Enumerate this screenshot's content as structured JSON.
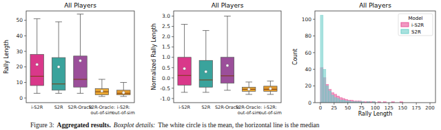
{
  "chart_data": [
    {
      "type": "box",
      "title": "All Players",
      "y_label": "Rally Length",
      "categories": [
        "i-S2R",
        "S2R",
        "S2R-Oracle",
        "S2R-Oracle: out-of-sim",
        "i-S2R: out-of-sim"
      ],
      "colors": [
        "#d9388a",
        "#3aa39c",
        "#9b4f9a",
        "#e8a631",
        "#e39a2c"
      ],
      "boxes": [
        {
          "low": 3,
          "q1": 8,
          "median": 14,
          "q3": 28,
          "high": 51,
          "mean": 21.5
        },
        {
          "low": 3,
          "q1": 5,
          "median": 9,
          "q3": 26,
          "high": 49,
          "mean": 20
        },
        {
          "low": 3,
          "q1": 7,
          "median": 12,
          "q3": 27,
          "high": 54,
          "mean": 24
        },
        {
          "low": 1,
          "q1": 2,
          "median": 4,
          "q3": 6,
          "high": 12,
          "mean": 4.5
        },
        {
          "low": 1,
          "q1": 2,
          "median": 3,
          "q3": 5,
          "high": 10,
          "mean": 3.5
        }
      ],
      "ylim": [
        -3,
        56
      ],
      "yticks": [
        0,
        10,
        20,
        30,
        40,
        50
      ],
      "grid": false
    },
    {
      "type": "box",
      "title": "All Players",
      "y_label": "Normalized Rally Length",
      "categories": [
        "i-S2R",
        "S2R",
        "S2R-Oracle",
        "S2R-Oracle: out-of-sim",
        "i-S2R: out-of-sim"
      ],
      "colors": [
        "#d9388a",
        "#3aa39c",
        "#9b4f9a",
        "#e8a631",
        "#e39a2c"
      ],
      "boxes": [
        {
          "low": -0.7,
          "q1": -0.35,
          "median": 0.12,
          "q3": 1.0,
          "high": 2.6,
          "mean": 0.45
        },
        {
          "low": -0.7,
          "q1": -0.45,
          "median": -0.1,
          "q3": 0.85,
          "high": 2.3,
          "mean": 0.3
        },
        {
          "low": -0.6,
          "q1": -0.25,
          "median": 0.1,
          "q3": 1.0,
          "high": 3.0,
          "mean": 0.6
        },
        {
          "low": -0.8,
          "q1": -0.65,
          "median": -0.55,
          "q3": -0.45,
          "high": -0.2,
          "mean": -0.55
        },
        {
          "low": -0.8,
          "q1": -0.65,
          "median": -0.55,
          "q3": -0.4,
          "high": -0.15,
          "mean": -0.52
        }
      ],
      "ylim": [
        -1.2,
        3.25
      ],
      "yticks": [
        {
          "value": -1,
          "label": "-1.0"
        },
        {
          "value": -0.5,
          "label": "-0.5"
        },
        {
          "value": 0,
          "label": "0.0"
        },
        {
          "value": 0.5,
          "label": "0.5"
        },
        {
          "value": 1,
          "label": "1.0"
        },
        {
          "value": 1.5,
          "label": "1.5"
        },
        {
          "value": 2,
          "label": "2.0"
        },
        {
          "value": 2.5,
          "label": "2.5"
        },
        {
          "value": 3,
          "label": "3.0"
        }
      ],
      "grid": false
    },
    {
      "type": "histogram",
      "title": "All Players",
      "x_label": "Rally Length",
      "y_label": "Count",
      "bins": [
        0,
        5,
        10,
        15,
        20,
        25,
        30,
        35,
        40,
        45,
        50,
        55,
        60,
        65,
        70,
        75,
        80,
        85,
        90,
        95,
        100,
        105,
        110,
        115,
        120,
        125,
        130,
        135,
        140,
        145,
        150
      ],
      "series": [
        {
          "name": "i-S2R",
          "color": "#e8559a",
          "values": [
            42,
            30,
            22,
            16,
            12,
            10,
            8,
            6,
            5,
            4,
            3,
            3,
            2,
            2,
            2,
            1,
            1,
            1,
            1,
            1,
            0,
            1,
            0,
            1,
            0,
            0,
            1,
            0,
            0,
            1
          ]
        },
        {
          "name": "S2R",
          "color": "#6fcfc9",
          "values": [
            105,
            40,
            20,
            14,
            9,
            6,
            5,
            3,
            3,
            2,
            2,
            1,
            1,
            1,
            1,
            1,
            0,
            1,
            0,
            1,
            0,
            0,
            0,
            0,
            0,
            0,
            0,
            0,
            0,
            0
          ]
        }
      ],
      "legend": "upper right",
      "legend_title": "Model",
      "xlim": [
        -10,
        210
      ],
      "xticks": [
        0,
        25,
        50,
        75,
        100,
        125,
        150,
        175,
        200
      ],
      "ylim": [
        0,
        110
      ],
      "yticks": [
        0,
        20,
        40,
        60,
        80,
        100
      ],
      "grid": false
    }
  ],
  "caption": {
    "label": "Figure 3:",
    "bold": "Aggregated results.",
    "italic": "Boxplot details:",
    "text": "The white circle is the mean, the horizontal line is the median"
  }
}
